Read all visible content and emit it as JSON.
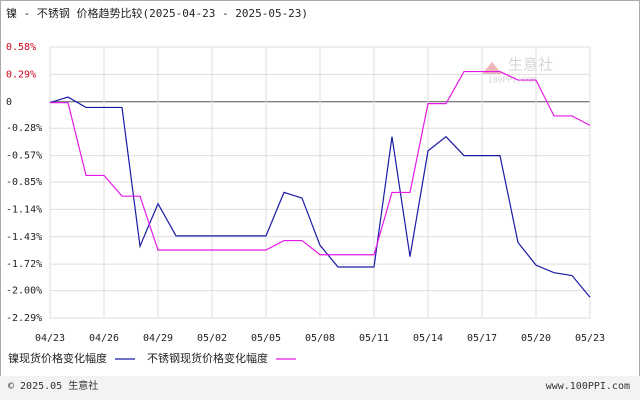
{
  "chart_data": {
    "type": "line",
    "title": "镍 - 不锈钢 价格趋势比较(2025-04-23 - 2025-05-23)",
    "categories": [
      "04/23",
      null,
      null,
      "04/26",
      null,
      null,
      "04/29",
      null,
      null,
      "05/02",
      null,
      null,
      "05/05",
      null,
      null,
      "05/08",
      null,
      null,
      "05/11",
      null,
      null,
      "05/14",
      null,
      null,
      "05/17",
      null,
      null,
      "05/20",
      null,
      null,
      "05/23"
    ],
    "series": [
      {
        "name": "镍现货价格变化幅度",
        "color": "#1a1aa6",
        "values": [
          -0.01,
          0.05,
          -0.06,
          -0.06,
          -0.06,
          -1.53,
          -1.08,
          -1.42,
          -1.42,
          -1.42,
          -1.42,
          -1.42,
          -1.42,
          -0.96,
          -1.02,
          -1.52,
          -1.75,
          -1.75,
          -1.75,
          -0.37,
          -1.64,
          -0.52,
          -0.37,
          -0.57,
          -0.57,
          -0.57,
          -1.49,
          -1.73,
          -1.81,
          -1.84,
          -2.07
        ]
      },
      {
        "name": "不锈钢现货价格变化幅度",
        "color": "#e619e6",
        "values": [
          -0.01,
          -0.01,
          -0.78,
          -0.78,
          -1.0,
          -1.0,
          -1.57,
          -1.57,
          -1.57,
          -1.57,
          -1.57,
          -1.57,
          -1.57,
          -1.47,
          -1.47,
          -1.62,
          -1.62,
          -1.62,
          -1.62,
          -0.96,
          -0.96,
          -0.02,
          -0.02,
          0.32,
          0.32,
          0.32,
          0.23,
          0.23,
          -0.15,
          -0.15,
          -0.25
        ]
      }
    ],
    "ylim": [
      -2.29,
      0.58
    ],
    "yticks": [
      {
        "value": 0.58,
        "label": "0.58%"
      },
      {
        "value": 0.29,
        "label": "0.29%"
      },
      0,
      {
        "value": -0.28,
        "label": "-0.28%"
      },
      {
        "value": -0.57,
        "label": "-0.57%"
      },
      {
        "value": -0.85,
        "label": "-0.85%"
      },
      {
        "value": -1.14,
        "label": "-1.14%"
      },
      {
        "value": -1.43,
        "label": "-1.43%"
      },
      {
        "value": -1.72,
        "label": "-1.72%"
      },
      {
        "value": -2.0,
        "label": "-2.00%"
      },
      {
        "value": -2.29,
        "label": "-2.29%"
      }
    ],
    "grid": true,
    "watermark": {
      "brand": "生意社",
      "site": "100PPI.COM"
    },
    "footer": {
      "copyright": "© 2025.05 生意社",
      "site": "www.100PPI.com"
    }
  }
}
